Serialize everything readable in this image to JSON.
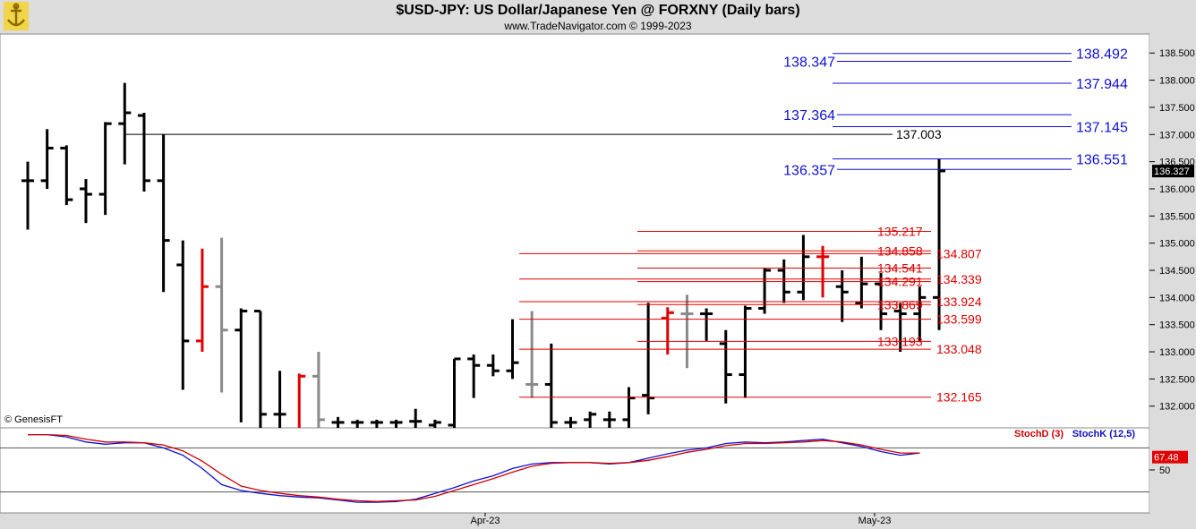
{
  "header": {
    "title": "$USD-JPY:  US Dollar/Japanese Yen @ FORXNY  (Daily bars)",
    "subtitle": "www.TradeNavigator.com © 1999-2023"
  },
  "watermark": "© GenesisFT",
  "chart_data": {
    "type": "bar",
    "y_axis": {
      "ticks": [
        "138.500",
        "138.000",
        "137.500",
        "137.000",
        "136.500",
        "136.000",
        "135.500",
        "135.000",
        "134.500",
        "134.000",
        "133.500",
        "133.000",
        "132.500",
        "132.000"
      ],
      "ylim": [
        131.6,
        138.85
      ],
      "last_value": "136.327"
    },
    "x_axis": {
      "labels": [
        "Apr-23",
        "May-23"
      ]
    },
    "bars": [
      {
        "o": 136.15,
        "h": 136.5,
        "l": 135.25,
        "c": 136.15
      },
      {
        "o": 136.15,
        "h": 137.1,
        "l": 136.0,
        "c": 136.75
      },
      {
        "o": 136.75,
        "h": 136.8,
        "l": 135.7,
        "c": 135.8
      },
      {
        "o": 136.0,
        "h": 136.18,
        "l": 135.37,
        "c": 135.9
      },
      {
        "o": 135.9,
        "h": 137.23,
        "l": 135.52,
        "c": 137.2
      },
      {
        "o": 137.2,
        "h": 137.95,
        "l": 136.45,
        "c": 137.4
      },
      {
        "o": 137.35,
        "h": 137.4,
        "l": 135.95,
        "c": 136.15
      },
      {
        "o": 136.15,
        "h": 137.0,
        "l": 134.1,
        "c": 135.05
      },
      {
        "o": 134.6,
        "h": 135.05,
        "l": 132.3,
        "c": 133.2
      },
      {
        "o": 133.2,
        "h": 134.9,
        "l": 133.0,
        "c": 134.2,
        "color": "red"
      },
      {
        "o": 134.2,
        "h": 135.1,
        "l": 132.25,
        "c": 133.4,
        "color": "gray"
      },
      {
        "o": 133.4,
        "h": 133.8,
        "l": 131.7,
        "c": 133.75
      },
      {
        "o": 133.75,
        "h": 133.75,
        "l": 131.6,
        "c": 131.85
      },
      {
        "o": 131.85,
        "h": 132.65,
        "l": 131.6,
        "c": 131.85
      },
      {
        "o": 131.6,
        "h": 132.6,
        "l": 131.6,
        "c": 132.55,
        "color": "red"
      },
      {
        "o": 132.55,
        "h": 133.0,
        "l": 131.6,
        "c": 131.75,
        "color": "gray"
      },
      {
        "o": 131.7,
        "h": 131.8,
        "l": 131.6,
        "c": 131.7
      },
      {
        "o": 131.7,
        "h": 131.75,
        "l": 131.6,
        "c": 131.7
      },
      {
        "o": 131.7,
        "h": 131.75,
        "l": 131.6,
        "c": 131.7
      },
      {
        "o": 131.7,
        "h": 131.75,
        "l": 131.6,
        "c": 131.7
      },
      {
        "o": 131.72,
        "h": 131.95,
        "l": 131.6,
        "c": 131.72
      },
      {
        "o": 131.65,
        "h": 131.75,
        "l": 131.6,
        "c": 131.7
      },
      {
        "o": 131.65,
        "h": 132.87,
        "l": 131.6,
        "c": 132.87
      },
      {
        "o": 132.87,
        "h": 132.95,
        "l": 132.15,
        "c": 132.75
      },
      {
        "o": 132.75,
        "h": 132.95,
        "l": 132.55,
        "c": 132.65
      },
      {
        "o": 132.65,
        "h": 133.6,
        "l": 132.5,
        "c": 132.8
      },
      {
        "o": 132.4,
        "h": 133.75,
        "l": 132.15,
        "c": 132.4,
        "color": "gray"
      },
      {
        "o": 132.4,
        "h": 133.15,
        "l": 131.6,
        "c": 131.7
      },
      {
        "o": 131.7,
        "h": 131.8,
        "l": 131.6,
        "c": 131.7
      },
      {
        "o": 131.75,
        "h": 131.9,
        "l": 131.6,
        "c": 131.85
      },
      {
        "o": 131.75,
        "h": 131.9,
        "l": 131.6,
        "c": 131.75
      },
      {
        "o": 131.75,
        "h": 132.35,
        "l": 131.6,
        "c": 132.15
      },
      {
        "o": 132.2,
        "h": 133.9,
        "l": 131.85,
        "c": 132.15
      },
      {
        "o": 133.62,
        "h": 133.82,
        "l": 132.95,
        "c": 133.72,
        "color": "red"
      },
      {
        "o": 133.7,
        "h": 134.05,
        "l": 132.7,
        "c": 133.7,
        "color": "gray"
      },
      {
        "o": 133.7,
        "h": 133.8,
        "l": 133.2,
        "c": 133.7
      },
      {
        "o": 133.15,
        "h": 133.4,
        "l": 132.05,
        "c": 132.58
      },
      {
        "o": 132.58,
        "h": 133.85,
        "l": 132.15,
        "c": 133.8
      },
      {
        "o": 133.8,
        "h": 134.55,
        "l": 133.7,
        "c": 134.5
      },
      {
        "o": 134.5,
        "h": 134.7,
        "l": 133.9,
        "c": 134.1
      },
      {
        "o": 134.1,
        "h": 135.15,
        "l": 133.95,
        "c": 134.75
      },
      {
        "o": 134.75,
        "h": 134.95,
        "l": 134.0,
        "c": 134.75,
        "color": "red"
      },
      {
        "o": 134.2,
        "h": 134.5,
        "l": 133.55,
        "c": 134.1
      },
      {
        "o": 133.9,
        "h": 134.75,
        "l": 133.8,
        "c": 134.25
      },
      {
        "o": 134.25,
        "h": 134.45,
        "l": 133.4,
        "c": 133.7
      },
      {
        "o": 133.75,
        "h": 133.9,
        "l": 133.0,
        "c": 133.7
      },
      {
        "o": 133.7,
        "h": 134.2,
        "l": 133.2,
        "c": 134.0
      },
      {
        "o": 134.0,
        "h": 136.55,
        "l": 133.4,
        "c": 136.33
      }
    ],
    "levels": [
      {
        "value": "138.492",
        "side": "right",
        "color": "blue"
      },
      {
        "value": "138.347",
        "side": "left",
        "color": "blue"
      },
      {
        "value": "137.944",
        "side": "right",
        "color": "blue"
      },
      {
        "value": "137.364",
        "side": "left",
        "color": "blue"
      },
      {
        "value": "137.145",
        "side": "right",
        "color": "blue"
      },
      {
        "value": "137.003",
        "side": "center",
        "color": "black"
      },
      {
        "value": "136.551",
        "side": "right",
        "color": "blue"
      },
      {
        "value": "136.357",
        "side": "left",
        "color": "blue"
      },
      {
        "value": "135.217",
        "side": "inner",
        "color": "red"
      },
      {
        "value": "134.858",
        "side": "inner",
        "color": "red"
      },
      {
        "value": "134.807",
        "side": "outer",
        "color": "red"
      },
      {
        "value": "134.541",
        "side": "inner",
        "color": "red"
      },
      {
        "value": "134.339",
        "side": "outer",
        "color": "red"
      },
      {
        "value": "134.291",
        "side": "inner",
        "color": "red"
      },
      {
        "value": "133.924",
        "side": "outer",
        "color": "red"
      },
      {
        "value": "133.869",
        "side": "inner",
        "color": "red"
      },
      {
        "value": "133.599",
        "side": "outer",
        "color": "red"
      },
      {
        "value": "133.193",
        "side": "inner",
        "color": "red"
      },
      {
        "value": "133.048",
        "side": "outer",
        "color": "red"
      },
      {
        "value": "132.165",
        "side": "outer",
        "color": "red"
      }
    ]
  },
  "stochastic": {
    "stochd_label": "StochD (3)",
    "stochk_label": "StochK (12,5)",
    "axis_ticks": [
      "50"
    ],
    "last_value": "67.48",
    "ylim": [
      0,
      100
    ],
    "stochk": [
      98,
      98,
      95,
      88,
      85,
      87,
      87,
      80,
      70,
      52,
      30,
      22,
      18,
      15,
      13,
      12,
      9,
      6,
      6,
      7,
      10,
      18,
      26,
      35,
      42,
      52,
      58,
      60,
      60,
      60,
      58,
      60,
      66,
      72,
      77,
      80,
      86,
      88,
      87,
      88,
      90,
      92,
      87,
      82,
      75,
      70,
      73
    ],
    "stochd": [
      98,
      98,
      97,
      92,
      88,
      88,
      87,
      84,
      76,
      62,
      44,
      28,
      22,
      18,
      15,
      13,
      10,
      8,
      7,
      8,
      9,
      14,
      22,
      30,
      38,
      47,
      55,
      59,
      60,
      60,
      59,
      60,
      63,
      68,
      74,
      78,
      83,
      86,
      86,
      87,
      88,
      90,
      88,
      84,
      78,
      73,
      73
    ]
  }
}
